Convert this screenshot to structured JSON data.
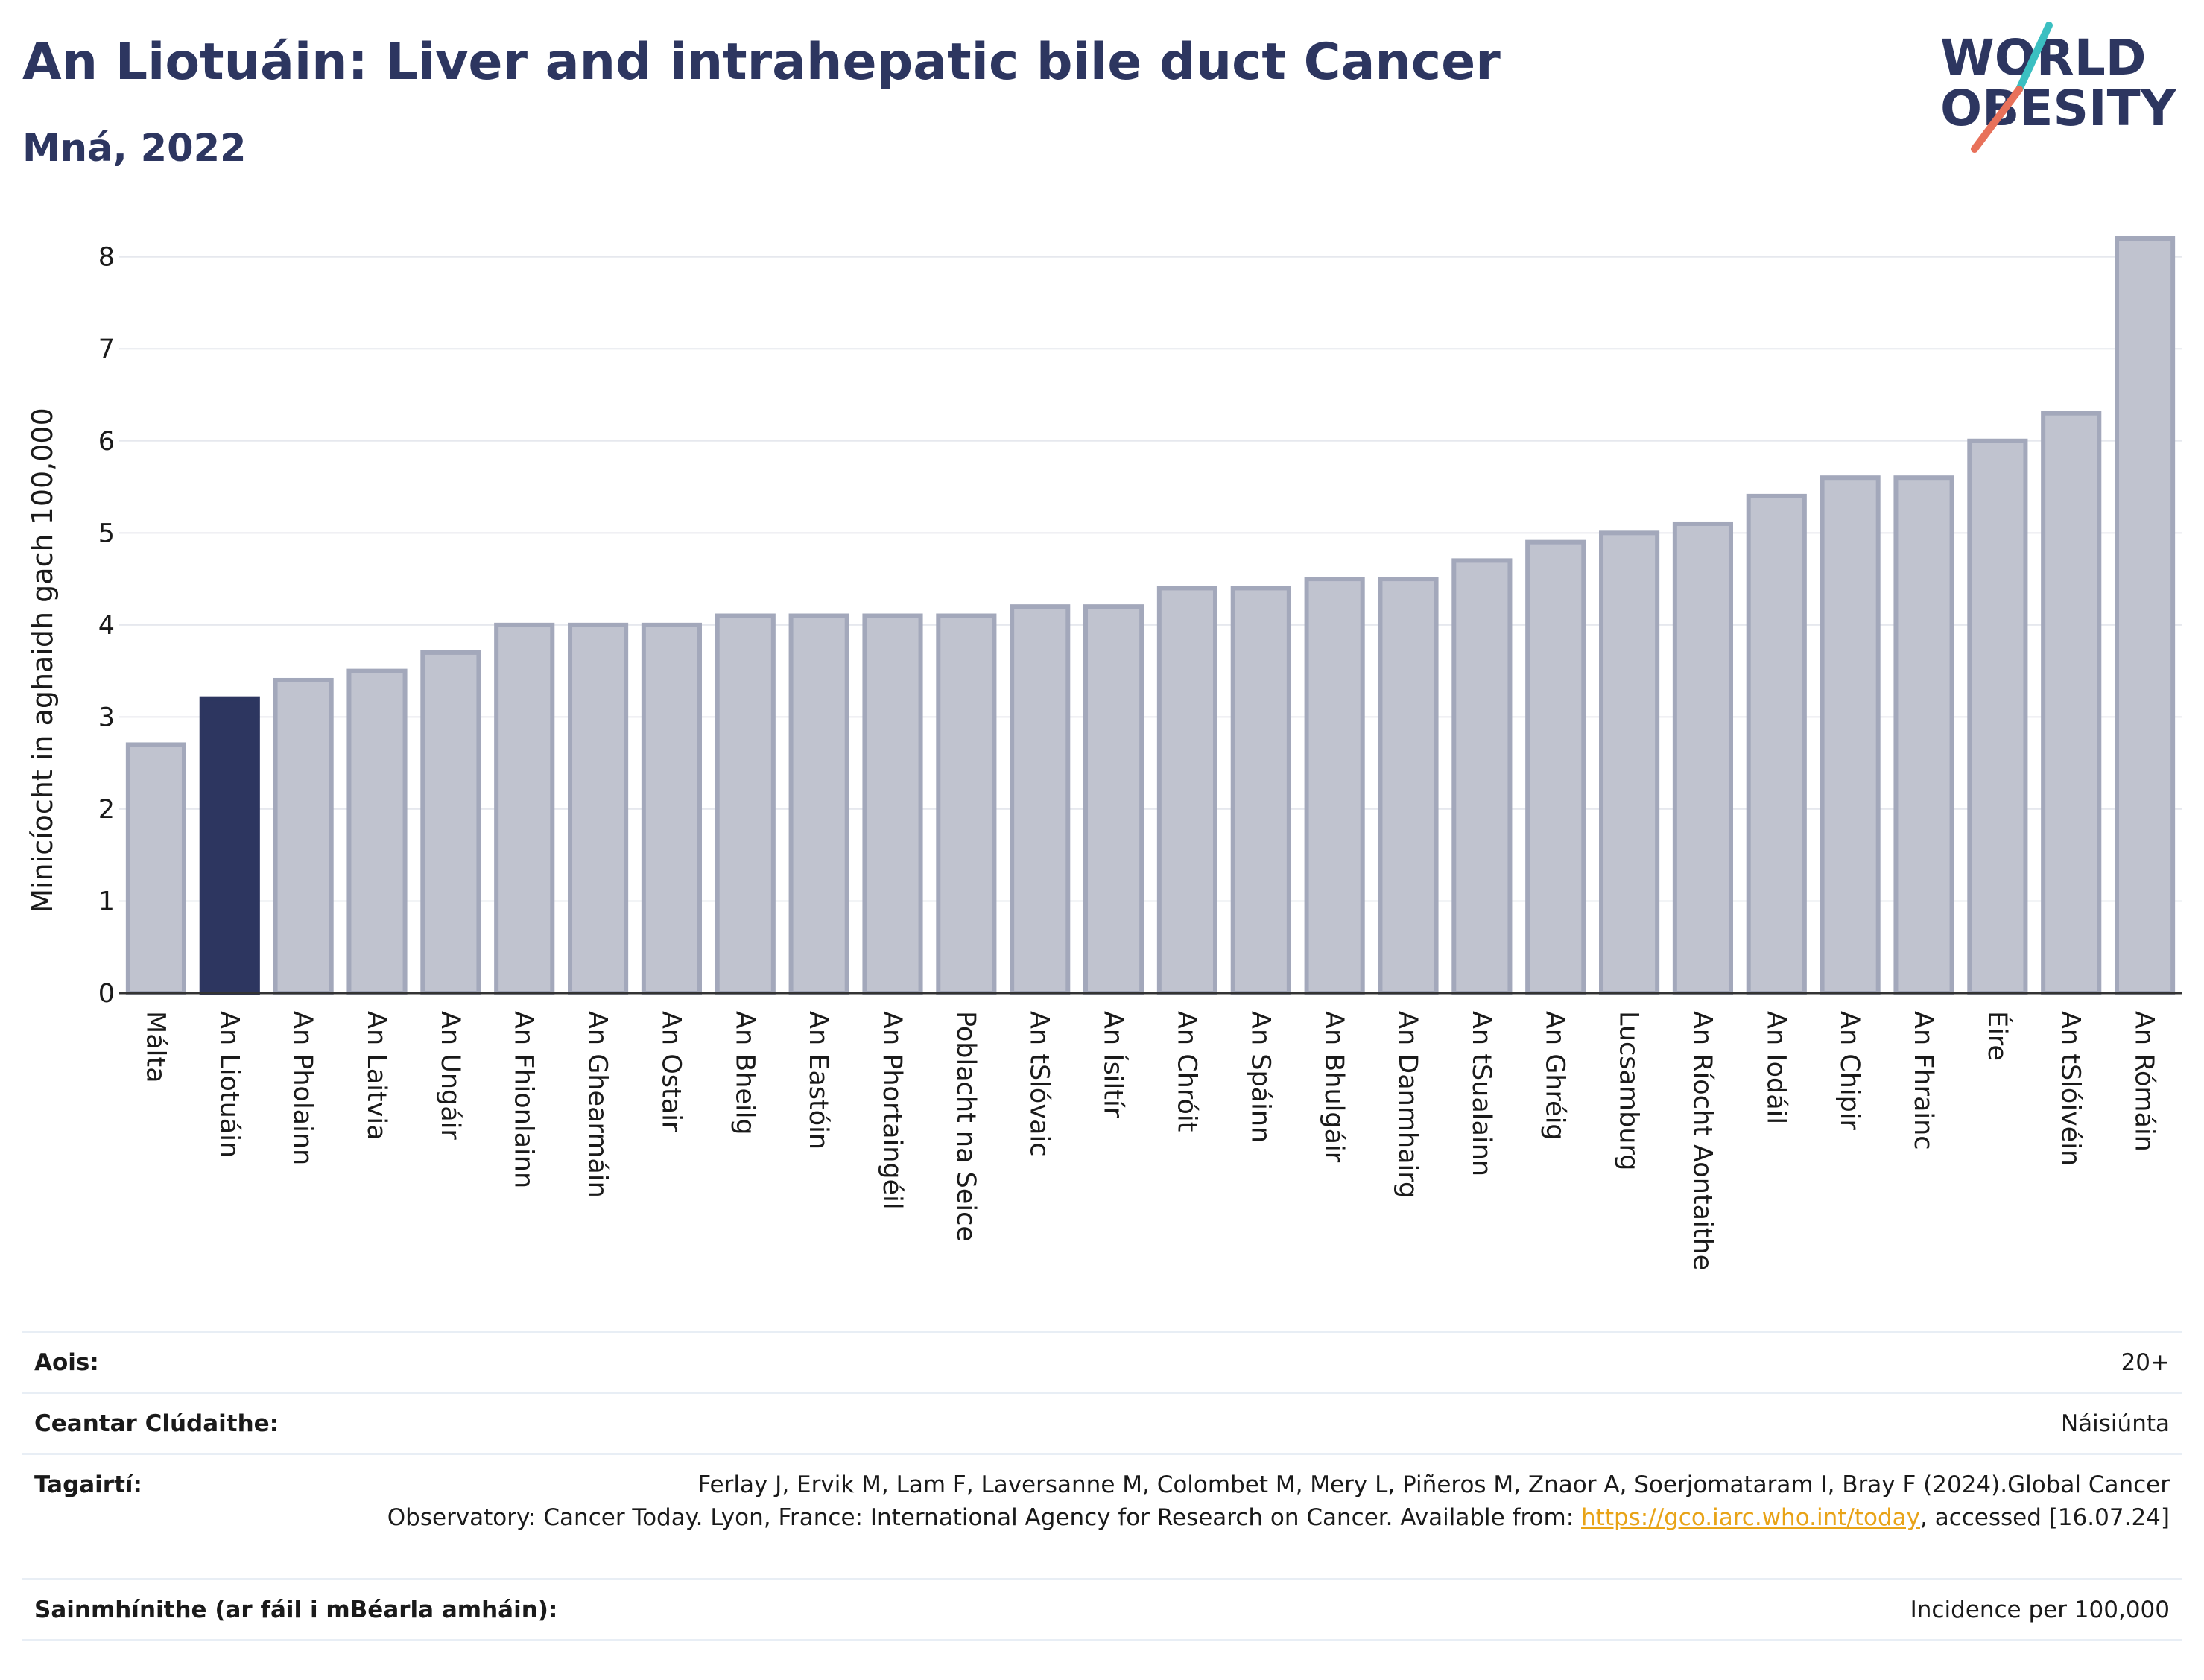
{
  "title": "An Liotuáin: Liver and intrahepatic bile duct Cancer",
  "subtitle": "Mná, 2022",
  "logo": {
    "line1": "WORLD",
    "line2": "OBESITY",
    "text_color": "#2d3660",
    "slash_colors": [
      "#3bbfc1",
      "#e8715a"
    ]
  },
  "colors": {
    "highlight": "#2d3660",
    "bar_fill": "#c0c3cf",
    "bar_stroke": "#a3a8bb"
  },
  "chart_data": {
    "type": "bar",
    "title": "An Liotuáin: Liver and intrahepatic bile duct Cancer",
    "subtitle": "Mná, 2022",
    "xlabel": "",
    "ylabel": "Minicíocht in aghaidh gach 100,000",
    "ylim": [
      0,
      8.2
    ],
    "yticks": [
      0,
      1,
      2,
      3,
      4,
      5,
      6,
      7,
      8
    ],
    "grid": true,
    "highlight": "An Liotuáin",
    "categories": [
      "Málta",
      "An Liotuáin",
      "An Pholainn",
      "An Laitvia",
      "An Ungáir",
      "An Fhionlainn",
      "An Ghearmáin",
      "An Ostair",
      "An Bheilg",
      "An Eastóin",
      "An Phortaingéil",
      "Poblacht na Seice",
      "An tSlóvaic",
      "An Ísiltír",
      "An Chróit",
      "An Spáinn",
      "An Bhulgáir",
      "An Danmhairg",
      "An tSualainn",
      "An Ghréig",
      "Lucsamburg",
      "An Ríocht Aontaithe",
      "An Iodáil",
      "An Chipir",
      "An Fhrainc",
      "Éire",
      "An tSlóivéin",
      "An Rómáin"
    ],
    "values": [
      2.7,
      3.2,
      3.4,
      3.5,
      3.7,
      4.0,
      4.0,
      4.0,
      4.1,
      4.1,
      4.1,
      4.1,
      4.2,
      4.2,
      4.4,
      4.4,
      4.5,
      4.5,
      4.7,
      4.9,
      5.0,
      5.1,
      5.4,
      5.6,
      5.6,
      6.0,
      6.3,
      8.2
    ]
  },
  "info": {
    "age": {
      "label": "Aois:",
      "value": "20+"
    },
    "area": {
      "label": "Ceantar Clúdaithe:",
      "value": "Náisiúnta"
    },
    "references": {
      "label": "Tagairtí:",
      "line1": "Ferlay J, Ervik M, Lam F, Laversanne M, Colombet M, Mery L, Piñeros M, Znaor A, Soerjomataram I, Bray F (2024).Global Cancer",
      "line2": "Observatory: Cancer Today. Lyon, France: International Agency for Research on Cancer. Available from: ",
      "link": "https://gco.iarc.who.int/today",
      "line3": ", accessed [16.07.24]"
    },
    "definitions": {
      "label": "Sainmhínithe (ar fáil i mBéarla amháin):",
      "value": "Incidence per 100,000"
    }
  }
}
